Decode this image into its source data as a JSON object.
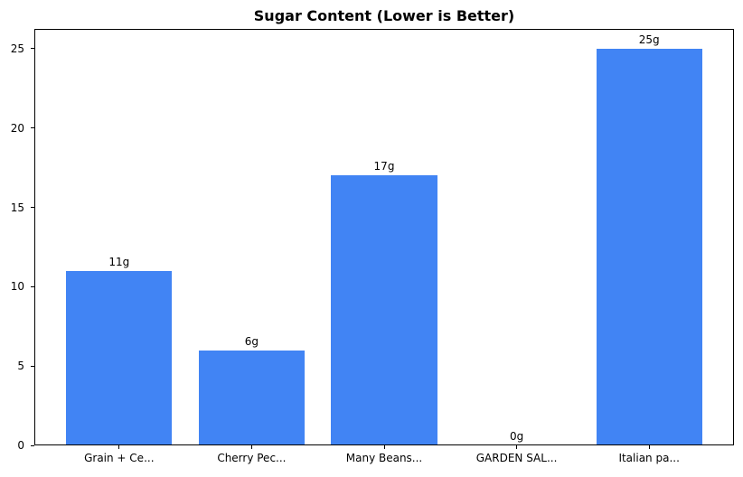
{
  "title": "Sugar Content (Lower is Better)",
  "chart_data": {
    "type": "bar",
    "title": "Sugar Content (Lower is Better)",
    "categories": [
      "Grain + Ce...",
      "Cherry Pec...",
      "Many Beans...",
      "GARDEN SAL...",
      "Italian pa..."
    ],
    "values": [
      11,
      6,
      17,
      0,
      25
    ],
    "bar_labels": [
      "11g",
      "6g",
      "17g",
      "0g",
      "25g"
    ],
    "xlabel": "",
    "ylabel": "",
    "ylim": [
      0,
      26.25
    ],
    "yticks": [
      0,
      5,
      10,
      15,
      20,
      25
    ],
    "grid": false,
    "legend": false,
    "bar_color": "#4184f4",
    "axis_color": "#000000",
    "text_color": "#000000",
    "background_color": "#ffffff"
  }
}
